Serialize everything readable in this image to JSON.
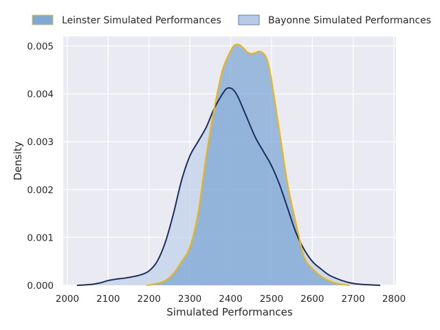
{
  "chart_data": {
    "type": "area",
    "title": "",
    "xlabel": "Simulated Performances",
    "ylabel": "Density",
    "xlim": [
      1990,
      2805
    ],
    "ylim": [
      0,
      0.0052
    ],
    "grid": true,
    "legend_placement": "top-center",
    "x_ticks": [
      2000,
      2100,
      2200,
      2300,
      2400,
      2500,
      2600,
      2700,
      2800
    ],
    "y_ticks": [
      0.0,
      0.001,
      0.002,
      0.003,
      0.004,
      0.005
    ],
    "x_tick_labels": [
      "2000",
      "2100",
      "2200",
      "2300",
      "2400",
      "2500",
      "2600",
      "2700",
      "2800"
    ],
    "y_tick_labels": [
      "0.000",
      "0.001",
      "0.002",
      "0.003",
      "0.004",
      "0.005"
    ],
    "series": [
      {
        "name": "Leinster Simulated Performances",
        "fill": "#7fa8d6",
        "fill_opacity": 0.75,
        "line": "#f2b705",
        "x": [
          2195,
          2220,
          2240,
          2260,
          2280,
          2300,
          2320,
          2340,
          2360,
          2380,
          2400,
          2410,
          2420,
          2430,
          2440,
          2450,
          2460,
          2470,
          2480,
          2490,
          2500,
          2520,
          2540,
          2560,
          2580,
          2600,
          2620,
          2640,
          2660,
          2690
        ],
        "y": [
          0.0,
          4e-05,
          0.0001,
          0.00025,
          0.0005,
          0.0008,
          0.0015,
          0.0027,
          0.0037,
          0.0045,
          0.0049,
          0.00502,
          0.00503,
          0.00497,
          0.00488,
          0.00484,
          0.00486,
          0.00489,
          0.00485,
          0.0047,
          0.0043,
          0.0032,
          0.0021,
          0.0013,
          0.0006,
          0.00035,
          0.0002,
          0.0001,
          4e-05,
          0.0
        ]
      },
      {
        "name": "Bayonne Simulated Performances",
        "fill": "#b7cbe8",
        "fill_opacity": 0.6,
        "line": "#1b2d5c",
        "x": [
          2025,
          2060,
          2080,
          2100,
          2120,
          2140,
          2160,
          2180,
          2200,
          2220,
          2240,
          2260,
          2280,
          2300,
          2320,
          2340,
          2360,
          2380,
          2390,
          2400,
          2410,
          2420,
          2440,
          2460,
          2480,
          2500,
          2520,
          2540,
          2560,
          2580,
          2600,
          2620,
          2640,
          2660,
          2680,
          2700,
          2720,
          2740,
          2765
        ],
        "y": [
          0.0,
          2e-05,
          5e-05,
          0.0001,
          0.00013,
          0.00015,
          0.00018,
          0.00022,
          0.0003,
          0.0005,
          0.0009,
          0.0015,
          0.0022,
          0.0027,
          0.003,
          0.0033,
          0.0037,
          0.004,
          0.00411,
          0.00412,
          0.00405,
          0.0039,
          0.0035,
          0.0031,
          0.0028,
          0.0025,
          0.0021,
          0.0016,
          0.0011,
          0.00075,
          0.0005,
          0.00035,
          0.00022,
          0.00014,
          8e-05,
          4e-05,
          2e-05,
          1e-05,
          0.0
        ]
      }
    ]
  }
}
